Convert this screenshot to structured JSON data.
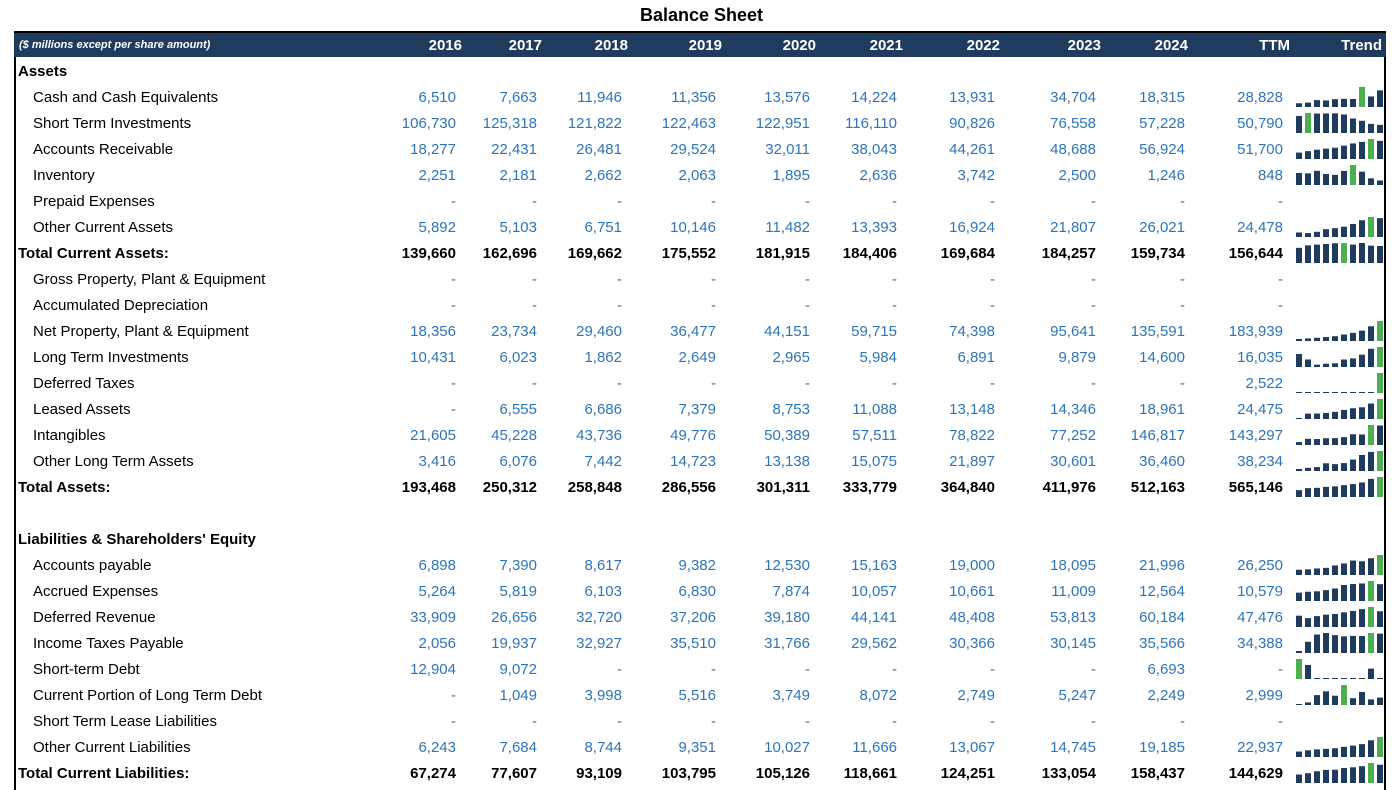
{
  "title": "Balance Sheet",
  "header": {
    "note": "($ millions except per share amount)",
    "columns": [
      "2016",
      "2017",
      "2018",
      "2019",
      "2020",
      "2021",
      "2022",
      "2023",
      "2024",
      "TTM",
      "Trend"
    ]
  },
  "colors": {
    "header_bg": "#1f3b5e",
    "value_blue": "#2e75b6",
    "bar_dark": "#1f3b5e",
    "bar_highlight": "#4caf50"
  },
  "rows": [
    {
      "label": "Assets",
      "type": "section",
      "values": []
    },
    {
      "label": "Cash and Cash Equivalents",
      "type": "item",
      "values": [
        "6,510",
        "7,663",
        "11,946",
        "11,356",
        "13,576",
        "14,224",
        "13,931",
        "34,704",
        "18,315",
        "28,828"
      ]
    },
    {
      "label": "Short Term Investments",
      "type": "item",
      "values": [
        "106,730",
        "125,318",
        "121,822",
        "122,463",
        "122,951",
        "116,110",
        "90,826",
        "76,558",
        "57,228",
        "50,790"
      ]
    },
    {
      "label": "Accounts Receivable",
      "type": "item",
      "values": [
        "18,277",
        "22,431",
        "26,481",
        "29,524",
        "32,011",
        "38,043",
        "44,261",
        "48,688",
        "56,924",
        "51,700"
      ]
    },
    {
      "label": "Inventory",
      "type": "item",
      "values": [
        "2,251",
        "2,181",
        "2,662",
        "2,063",
        "1,895",
        "2,636",
        "3,742",
        "2,500",
        "1,246",
        "848"
      ]
    },
    {
      "label": "Prepaid Expenses",
      "type": "item",
      "values": [
        "-",
        "-",
        "-",
        "-",
        "-",
        "-",
        "-",
        "-",
        "-",
        "-"
      ]
    },
    {
      "label": "Other Current Assets",
      "type": "item",
      "values": [
        "5,892",
        "5,103",
        "6,751",
        "10,146",
        "11,482",
        "13,393",
        "16,924",
        "21,807",
        "26,021",
        "24,478"
      ]
    },
    {
      "label": "Total Current Assets:",
      "type": "total",
      "values": [
        "139,660",
        "162,696",
        "169,662",
        "175,552",
        "181,915",
        "184,406",
        "169,684",
        "184,257",
        "159,734",
        "156,644"
      ]
    },
    {
      "label": "Gross Property, Plant & Equipment",
      "type": "item",
      "values": [
        "-",
        "-",
        "-",
        "-",
        "-",
        "-",
        "-",
        "-",
        "-",
        "-"
      ]
    },
    {
      "label": "Accumulated Depreciation",
      "type": "item",
      "values": [
        "-",
        "-",
        "-",
        "-",
        "-",
        "-",
        "-",
        "-",
        "-",
        "-"
      ]
    },
    {
      "label": "Net Property, Plant & Equipment",
      "type": "item",
      "values": [
        "18,356",
        "23,734",
        "29,460",
        "36,477",
        "44,151",
        "59,715",
        "74,398",
        "95,641",
        "135,591",
        "183,939"
      ]
    },
    {
      "label": "Long Term Investments",
      "type": "item",
      "values": [
        "10,431",
        "6,023",
        "1,862",
        "2,649",
        "2,965",
        "5,984",
        "6,891",
        "9,879",
        "14,600",
        "16,035"
      ]
    },
    {
      "label": "Deferred Taxes",
      "type": "item",
      "values": [
        "-",
        "-",
        "-",
        "-",
        "-",
        "-",
        "-",
        "-",
        "-",
        "2,522"
      ]
    },
    {
      "label": "Leased Assets",
      "type": "item",
      "values": [
        "-",
        "6,555",
        "6,686",
        "7,379",
        "8,753",
        "11,088",
        "13,148",
        "14,346",
        "18,961",
        "24,475"
      ]
    },
    {
      "label": "Intangibles",
      "type": "item",
      "values": [
        "21,605",
        "45,228",
        "43,736",
        "49,776",
        "50,389",
        "57,511",
        "78,822",
        "77,252",
        "146,817",
        "143,297"
      ]
    },
    {
      "label": "Other Long Term Assets",
      "type": "item",
      "values": [
        "3,416",
        "6,076",
        "7,442",
        "14,723",
        "13,138",
        "15,075",
        "21,897",
        "30,601",
        "36,460",
        "38,234"
      ]
    },
    {
      "label": "Total Assets:",
      "type": "total",
      "values": [
        "193,468",
        "250,312",
        "258,848",
        "286,556",
        "301,311",
        "333,779",
        "364,840",
        "411,976",
        "512,163",
        "565,146"
      ]
    },
    {
      "label": "",
      "type": "blank",
      "values": []
    },
    {
      "label": "Liabilities & Shareholders' Equity",
      "type": "section",
      "values": []
    },
    {
      "label": "Accounts payable",
      "type": "item",
      "values": [
        "6,898",
        "7,390",
        "8,617",
        "9,382",
        "12,530",
        "15,163",
        "19,000",
        "18,095",
        "21,996",
        "26,250"
      ]
    },
    {
      "label": "Accrued Expenses",
      "type": "item",
      "values": [
        "5,264",
        "5,819",
        "6,103",
        "6,830",
        "7,874",
        "10,057",
        "10,661",
        "11,009",
        "12,564",
        "10,579"
      ]
    },
    {
      "label": "Deferred Revenue",
      "type": "item",
      "values": [
        "33,909",
        "26,656",
        "32,720",
        "37,206",
        "39,180",
        "44,141",
        "48,408",
        "53,813",
        "60,184",
        "47,476"
      ]
    },
    {
      "label": "Income Taxes Payable",
      "type": "item",
      "values": [
        "2,056",
        "19,937",
        "32,927",
        "35,510",
        "31,766",
        "29,562",
        "30,366",
        "30,145",
        "35,566",
        "34,388"
      ]
    },
    {
      "label": "Short-term Debt",
      "type": "item",
      "values": [
        "12,904",
        "9,072",
        "-",
        "-",
        "-",
        "-",
        "-",
        "-",
        "6,693",
        "-"
      ]
    },
    {
      "label": "Current Portion of Long Term Debt",
      "type": "item",
      "values": [
        "-",
        "1,049",
        "3,998",
        "5,516",
        "3,749",
        "8,072",
        "2,749",
        "5,247",
        "2,249",
        "2,999"
      ]
    },
    {
      "label": "Short Term Lease Liabilities",
      "type": "item",
      "values": [
        "-",
        "-",
        "-",
        "-",
        "-",
        "-",
        "-",
        "-",
        "-",
        "-"
      ]
    },
    {
      "label": "Other Current Liabilities",
      "type": "item",
      "values": [
        "6,243",
        "7,684",
        "8,744",
        "9,351",
        "10,027",
        "11,666",
        "13,067",
        "14,745",
        "19,185",
        "22,937"
      ]
    },
    {
      "label": "Total Current Liabilities:",
      "type": "total",
      "values": [
        "67,274",
        "77,607",
        "93,109",
        "103,795",
        "105,126",
        "118,661",
        "124,251",
        "133,054",
        "158,437",
        "144,629"
      ]
    }
  ]
}
